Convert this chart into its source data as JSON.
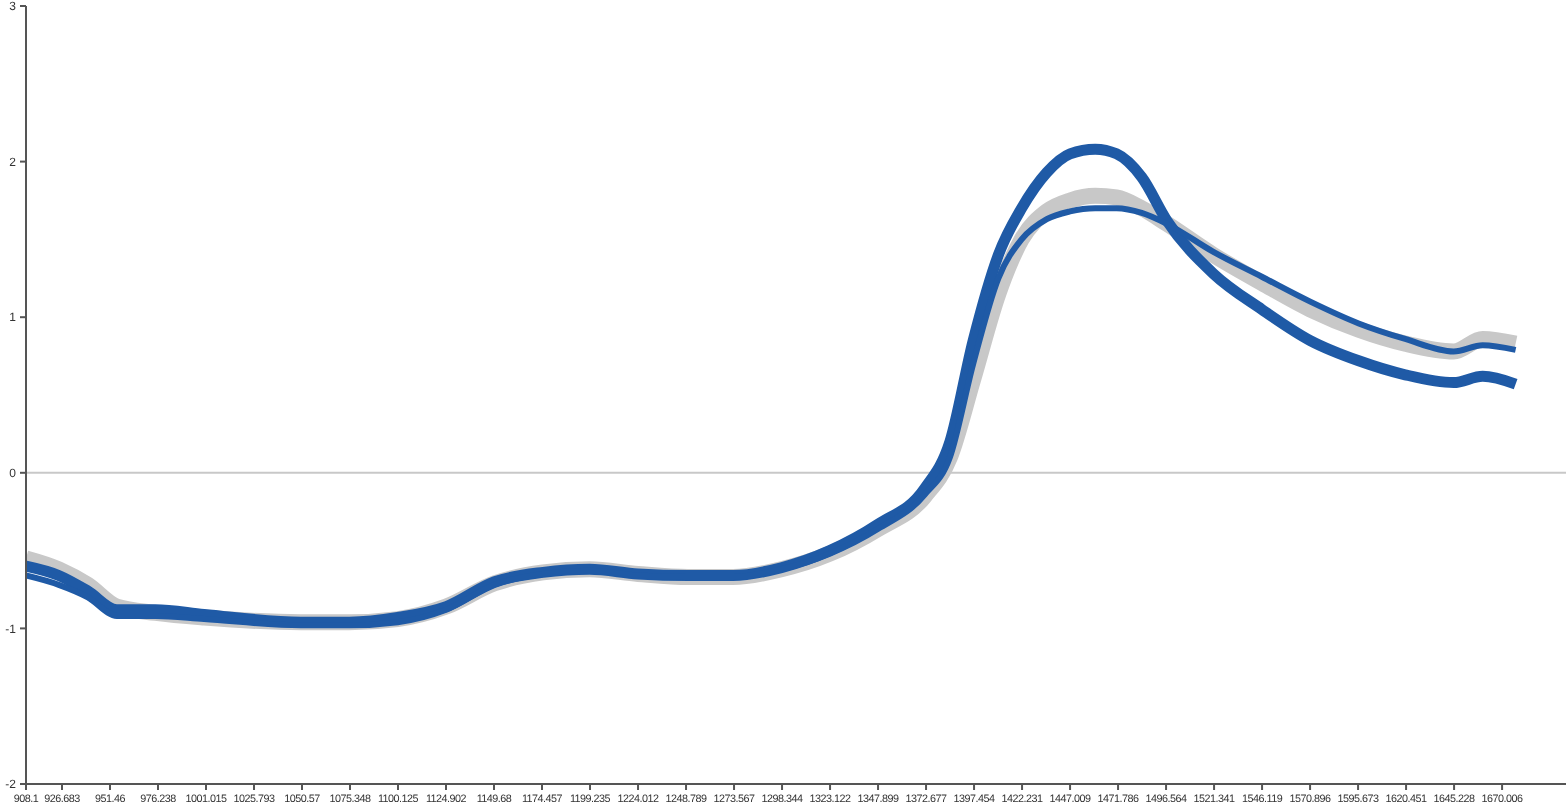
{
  "chart_data": {
    "type": "line",
    "xlim": [
      908.1,
      1703
    ],
    "ylim": [
      -2,
      3
    ],
    "yticks": [
      -2,
      -1,
      0,
      1,
      2,
      3
    ],
    "xticks": [
      908.1,
      926.683,
      951.46,
      976.238,
      1001.015,
      1025.793,
      1050.57,
      1075.348,
      1100.125,
      1124.902,
      1149.68,
      1174.457,
      1199.235,
      1224.012,
      1248.789,
      1273.567,
      1298.344,
      1323.122,
      1347.899,
      1372.677,
      1397.454,
      1422.231,
      1447.009,
      1471.786,
      1496.564,
      1521.341,
      1546.119,
      1570.896,
      1595.673,
      1620.451,
      1645.228,
      1670.006
    ],
    "grid": false,
    "legend": false,
    "marker": "none",
    "line_style": "solid",
    "ref_lines": [
      {
        "axis": "y",
        "value": 0,
        "color": "#c8c8c8"
      }
    ],
    "series": [
      {
        "color": "#c8c8c8",
        "x": [
          908.1,
          925,
          940,
          955,
          975,
          1000,
          1050,
          1075,
          1100,
          1125,
          1150,
          1175,
          1199,
          1224,
          1250,
          1273,
          1298,
          1323,
          1348,
          1372,
          1385,
          1397,
          1410,
          1422,
          1435,
          1447,
          1460,
          1471,
          1484,
          1497,
          1521,
          1546,
          1571,
          1596,
          1620,
          1645,
          1660,
          1677
        ],
        "values": [
          -0.55,
          -0.62,
          -0.72,
          -0.86,
          -0.9,
          -0.93,
          -0.96,
          -0.96,
          -0.94,
          -0.86,
          -0.71,
          -0.64,
          -0.62,
          -0.65,
          -0.67,
          -0.67,
          -0.62,
          -0.52,
          -0.36,
          -0.15,
          0.1,
          0.6,
          1.15,
          1.5,
          1.68,
          1.75,
          1.78,
          1.77,
          1.7,
          1.6,
          1.4,
          1.22,
          1.05,
          0.92,
          0.83,
          0.78,
          0.86,
          0.83
        ]
      },
      {
        "color": "#1f5aa6",
        "x": [
          908.1,
          925,
          940,
          955,
          975,
          1000,
          1050,
          1075,
          1100,
          1125,
          1150,
          1175,
          1199,
          1224,
          1250,
          1273,
          1298,
          1323,
          1348,
          1372,
          1385,
          1397,
          1410,
          1422,
          1435,
          1447,
          1460,
          1471,
          1484,
          1497,
          1521,
          1546,
          1571,
          1596,
          1620,
          1645,
          1660,
          1677
        ],
        "values": [
          -0.6,
          -0.66,
          -0.76,
          -0.88,
          -0.88,
          -0.91,
          -0.96,
          -0.96,
          -0.93,
          -0.86,
          -0.7,
          -0.64,
          -0.62,
          -0.65,
          -0.66,
          -0.66,
          -0.61,
          -0.5,
          -0.33,
          -0.1,
          0.2,
          0.85,
          1.4,
          1.7,
          1.93,
          2.05,
          2.08,
          2.05,
          1.9,
          1.62,
          1.28,
          1.05,
          0.85,
          0.72,
          0.63,
          0.58,
          0.62,
          0.57
        ]
      },
      {
        "color": "#1f5aa6",
        "x": [
          908.1,
          925,
          940,
          955,
          975,
          1000,
          1050,
          1075,
          1100,
          1125,
          1150,
          1175,
          1199,
          1224,
          1250,
          1273,
          1298,
          1323,
          1348,
          1372,
          1385,
          1397,
          1410,
          1422,
          1435,
          1447,
          1460,
          1471,
          1484,
          1497,
          1521,
          1546,
          1571,
          1596,
          1620,
          1645,
          1660,
          1677
        ],
        "values": [
          -0.66,
          -0.72,
          -0.8,
          -0.92,
          -0.92,
          -0.94,
          -0.98,
          -0.98,
          -0.96,
          -0.88,
          -0.72,
          -0.65,
          -0.63,
          -0.66,
          -0.67,
          -0.67,
          -0.62,
          -0.52,
          -0.36,
          -0.14,
          0.1,
          0.7,
          1.25,
          1.5,
          1.63,
          1.68,
          1.7,
          1.7,
          1.67,
          1.6,
          1.42,
          1.26,
          1.1,
          0.96,
          0.86,
          0.78,
          0.82,
          0.79
        ]
      }
    ]
  }
}
